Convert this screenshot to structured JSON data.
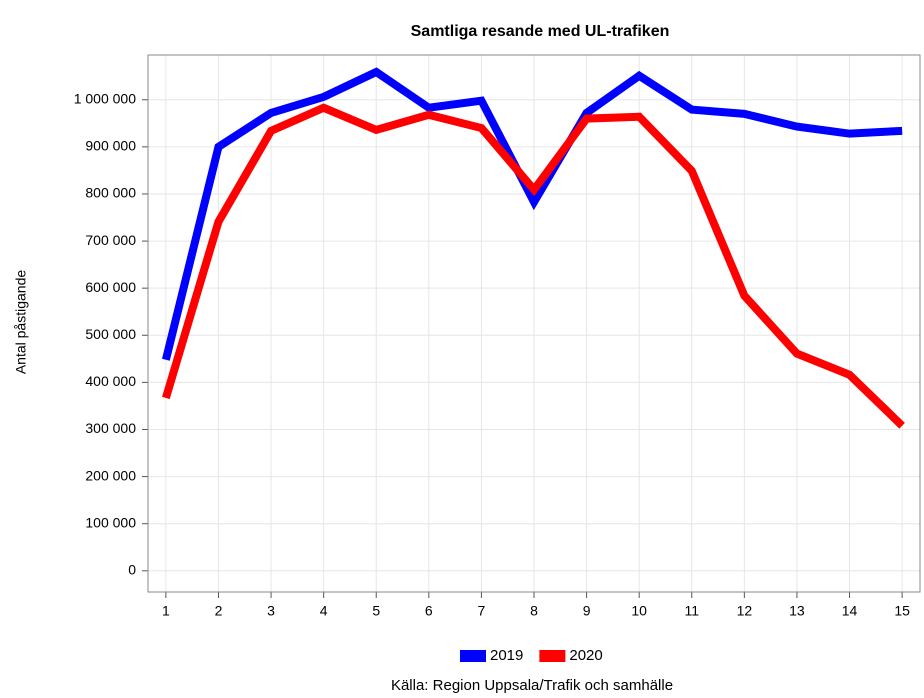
{
  "chart_data": {
    "type": "line",
    "title": "Samtliga resande med UL-trafiken",
    "ylabel": "Antal påstigande",
    "source": "Källa: Region Uppsala/Trafik och samhälle",
    "x": [
      1,
      2,
      3,
      4,
      5,
      6,
      7,
      8,
      9,
      10,
      11,
      12,
      13,
      14,
      15
    ],
    "series": [
      {
        "name": "2019",
        "color": "#0000ff",
        "values": [
          448000,
          900000,
          972000,
          1006000,
          1059000,
          983000,
          998000,
          783000,
          972000,
          1051000,
          979000,
          970000,
          943000,
          928000,
          934000
        ]
      },
      {
        "name": "2020",
        "color": "#ff0000",
        "values": [
          367000,
          741000,
          934000,
          983000,
          936000,
          968000,
          940000,
          809000,
          960000,
          964000,
          849000,
          584000,
          461000,
          416000,
          308000
        ]
      }
    ],
    "xlim": [
      0.66,
      15.34
    ],
    "xticks": [
      1,
      2,
      3,
      4,
      5,
      6,
      7,
      8,
      9,
      10,
      11,
      12,
      13,
      14,
      15
    ],
    "ylim": [
      -45000,
      1095000
    ],
    "yticks": [
      0,
      {
        "value": 100000,
        "label": "100 000"
      },
      {
        "value": 200000,
        "label": "200 000"
      },
      {
        "value": 300000,
        "label": "300 000"
      },
      {
        "value": 400000,
        "label": "400 000"
      },
      {
        "value": 500000,
        "label": "500 000"
      },
      {
        "value": 600000,
        "label": "600 000"
      },
      {
        "value": 700000,
        "label": "700 000"
      },
      {
        "value": 800000,
        "label": "800 000"
      },
      {
        "value": 900000,
        "label": "900 000"
      },
      {
        "value": 1000000,
        "label": "1 000 000"
      }
    ],
    "grid": true,
    "legend": "bottom"
  }
}
